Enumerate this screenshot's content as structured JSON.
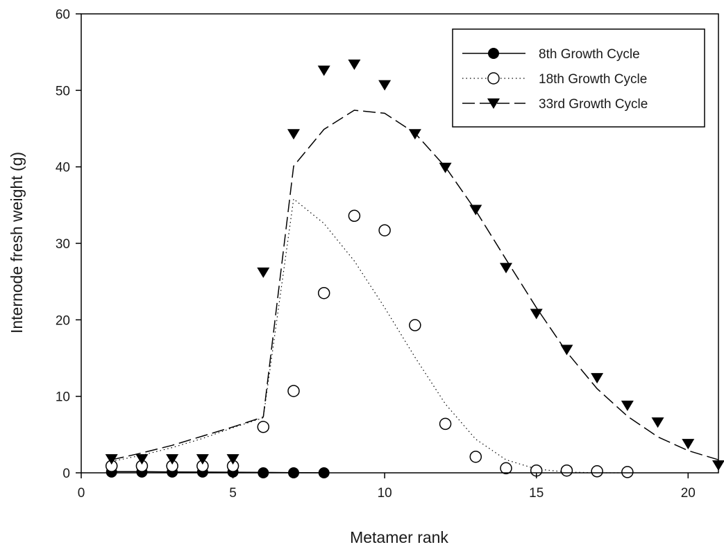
{
  "chart_data": {
    "type": "scatter",
    "title": "",
    "xlabel": "Metamer rank",
    "ylabel": "Internode fresh weight (g)",
    "xlim": [
      0,
      21
    ],
    "ylim": [
      0,
      60
    ],
    "x_ticks": [
      0,
      5,
      10,
      15,
      20
    ],
    "y_ticks": [
      0,
      10,
      20,
      30,
      40,
      50,
      60
    ],
    "x_tick_labels": [
      "0",
      "5",
      "10",
      "15",
      "20"
    ],
    "y_tick_labels": [
      "0",
      "10",
      "20",
      "30",
      "40",
      "50",
      "60"
    ],
    "grid": false,
    "legend_position": "top-right",
    "series": [
      {
        "name": "8th Growth Cycle",
        "marker": "filled-circle",
        "line_style": "solid",
        "color": "#000000",
        "observed": [
          {
            "x": 1,
            "y": 0.1
          },
          {
            "x": 2,
            "y": 0.1
          },
          {
            "x": 3,
            "y": 0.1
          },
          {
            "x": 4,
            "y": 0.1
          },
          {
            "x": 5,
            "y": 0.1
          },
          {
            "x": 6,
            "y": 0.0
          },
          {
            "x": 7,
            "y": 0.0
          },
          {
            "x": 8,
            "y": 0.0
          }
        ],
        "fitted": [
          {
            "x": 1,
            "y": 0.15
          },
          {
            "x": 2,
            "y": 0.15
          },
          {
            "x": 3,
            "y": 0.12
          },
          {
            "x": 4,
            "y": 0.1
          },
          {
            "x": 5,
            "y": 0.08
          },
          {
            "x": 6,
            "y": 0.05
          },
          {
            "x": 7,
            "y": 0.03
          },
          {
            "x": 8,
            "y": 0.01
          }
        ]
      },
      {
        "name": "18th Growth Cycle",
        "marker": "open-circle",
        "line_style": "dotted",
        "color": "#000000",
        "observed": [
          {
            "x": 1,
            "y": 0.9
          },
          {
            "x": 2,
            "y": 0.9
          },
          {
            "x": 3,
            "y": 0.9
          },
          {
            "x": 4,
            "y": 0.9
          },
          {
            "x": 5,
            "y": 0.9
          },
          {
            "x": 6,
            "y": 6.0
          },
          {
            "x": 7,
            "y": 10.7
          },
          {
            "x": 8,
            "y": 23.5
          },
          {
            "x": 9,
            "y": 33.6
          },
          {
            "x": 10,
            "y": 31.7
          },
          {
            "x": 11,
            "y": 19.3
          },
          {
            "x": 12,
            "y": 6.4
          },
          {
            "x": 13,
            "y": 2.1
          },
          {
            "x": 14,
            "y": 0.6
          },
          {
            "x": 15,
            "y": 0.3
          },
          {
            "x": 16,
            "y": 0.3
          },
          {
            "x": 17,
            "y": 0.2
          },
          {
            "x": 18,
            "y": 0.1
          }
        ],
        "fitted": [
          {
            "x": 1,
            "y": 1.5
          },
          {
            "x": 2,
            "y": 2.3
          },
          {
            "x": 3,
            "y": 3.3
          },
          {
            "x": 4,
            "y": 4.5
          },
          {
            "x": 5,
            "y": 5.9
          },
          {
            "x": 6,
            "y": 7.2
          },
          {
            "x": 7,
            "y": 35.8
          },
          {
            "x": 8,
            "y": 32.6
          },
          {
            "x": 9,
            "y": 27.7
          },
          {
            "x": 10,
            "y": 21.6
          },
          {
            "x": 11,
            "y": 15.1
          },
          {
            "x": 12,
            "y": 9.0
          },
          {
            "x": 13,
            "y": 4.4
          },
          {
            "x": 14,
            "y": 1.7
          },
          {
            "x": 15,
            "y": 0.5
          },
          {
            "x": 16,
            "y": 0.1
          },
          {
            "x": 17,
            "y": 0.0
          },
          {
            "x": 18,
            "y": 0.0
          }
        ]
      },
      {
        "name": "33rd Growth Cycle",
        "marker": "filled-triangle-down",
        "line_style": "dashed",
        "color": "#000000",
        "observed": [
          {
            "x": 1,
            "y": 1.8
          },
          {
            "x": 2,
            "y": 1.8
          },
          {
            "x": 3,
            "y": 1.8
          },
          {
            "x": 4,
            "y": 1.8
          },
          {
            "x": 5,
            "y": 1.8
          },
          {
            "x": 6,
            "y": 26.2
          },
          {
            "x": 7,
            "y": 44.3
          },
          {
            "x": 8,
            "y": 52.6
          },
          {
            "x": 9,
            "y": 53.4
          },
          {
            "x": 10,
            "y": 50.7
          },
          {
            "x": 11,
            "y": 44.3
          },
          {
            "x": 12,
            "y": 39.9
          },
          {
            "x": 13,
            "y": 34.4
          },
          {
            "x": 14,
            "y": 26.8
          },
          {
            "x": 15,
            "y": 20.8
          },
          {
            "x": 16,
            "y": 16.1
          },
          {
            "x": 17,
            "y": 12.4
          },
          {
            "x": 18,
            "y": 8.8
          },
          {
            "x": 19,
            "y": 6.6
          },
          {
            "x": 20,
            "y": 3.8
          },
          {
            "x": 21,
            "y": 1.0
          }
        ],
        "fitted": [
          {
            "x": 1,
            "y": 1.7
          },
          {
            "x": 2,
            "y": 2.6
          },
          {
            "x": 3,
            "y": 3.6
          },
          {
            "x": 4,
            "y": 4.8
          },
          {
            "x": 5,
            "y": 6.0
          },
          {
            "x": 6,
            "y": 7.3
          },
          {
            "x": 7,
            "y": 40.1
          },
          {
            "x": 8,
            "y": 44.9
          },
          {
            "x": 9,
            "y": 47.4
          },
          {
            "x": 10,
            "y": 47.0
          },
          {
            "x": 11,
            "y": 44.4
          },
          {
            "x": 12,
            "y": 40.0
          },
          {
            "x": 13,
            "y": 34.3
          },
          {
            "x": 14,
            "y": 27.9
          },
          {
            "x": 15,
            "y": 21.6
          },
          {
            "x": 16,
            "y": 15.8
          },
          {
            "x": 17,
            "y": 11.0
          },
          {
            "x": 18,
            "y": 7.4
          },
          {
            "x": 19,
            "y": 4.7
          },
          {
            "x": 20,
            "y": 2.9
          },
          {
            "x": 21,
            "y": 1.7
          }
        ]
      }
    ]
  }
}
